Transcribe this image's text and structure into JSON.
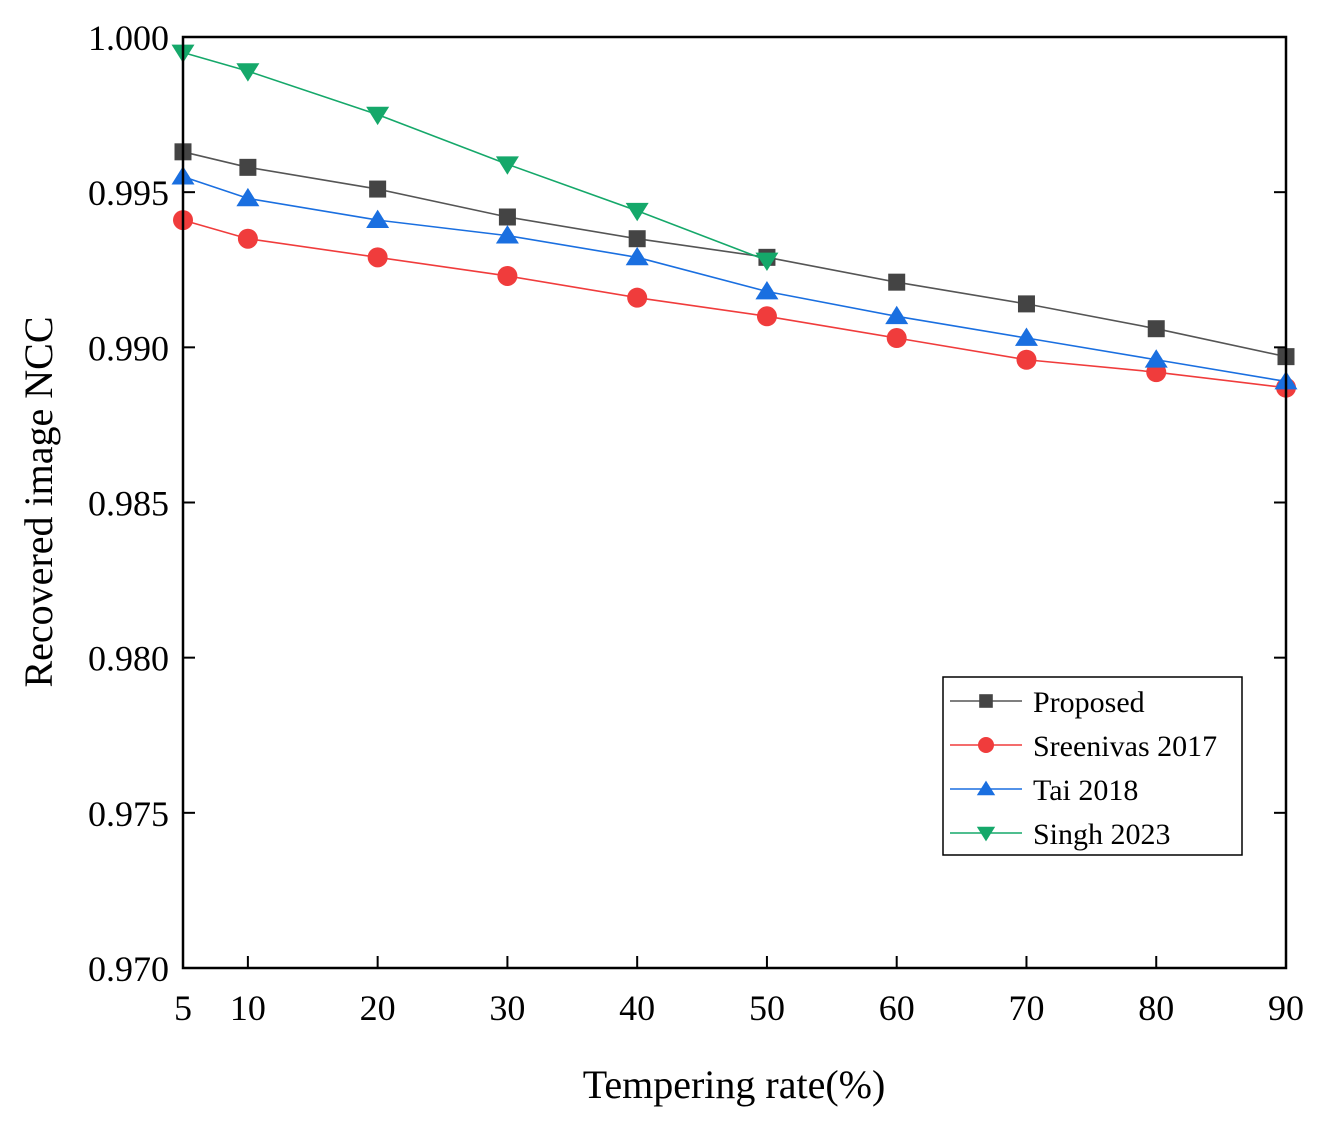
{
  "chart_data": {
    "type": "line",
    "xlabel": "Tempering rate(%)",
    "ylabel": "Recovered image NCC",
    "x": [
      5,
      10,
      20,
      30,
      40,
      50,
      60,
      70,
      80,
      90
    ],
    "xlim": [
      5,
      90
    ],
    "ylim": [
      0.97,
      1.0
    ],
    "xticks": [
      "5",
      "10",
      "20",
      "30",
      "40",
      "50",
      "60",
      "70",
      "80",
      "90"
    ],
    "xtick_values": [
      5,
      10,
      20,
      30,
      40,
      50,
      60,
      70,
      80,
      90
    ],
    "yticks": [
      "0.970",
      "0.975",
      "0.980",
      "0.985",
      "0.990",
      "0.995",
      "1.000"
    ],
    "ytick_values": [
      0.97,
      0.975,
      0.98,
      0.985,
      0.99,
      0.995,
      1.0
    ],
    "grid": false,
    "legend_position": "bottom-right",
    "series": [
      {
        "name": "Proposed",
        "marker": "square",
        "color": "#444444",
        "line_color": "#555555",
        "values": [
          0.9963,
          0.9958,
          0.9951,
          0.9942,
          0.9935,
          0.9929,
          0.9921,
          0.9914,
          0.9906,
          0.9897
        ]
      },
      {
        "name": "Sreenivas 2017",
        "marker": "circle",
        "color": "#F03C3C",
        "line_color": "#F03C3C",
        "values": [
          0.9941,
          0.9935,
          0.9929,
          0.9923,
          0.9916,
          0.991,
          0.9903,
          0.9896,
          0.9892,
          0.9887
        ]
      },
      {
        "name": "Tai 2018",
        "marker": "triangle-up",
        "color": "#1A6FE0",
        "line_color": "#1A6FE0",
        "values": [
          0.9955,
          0.9948,
          0.9941,
          0.9936,
          0.9929,
          0.9918,
          0.991,
          0.9903,
          0.9896,
          0.9889
        ]
      },
      {
        "name": "Singh 2023",
        "marker": "triangle-down",
        "color": "#15A86A",
        "line_color": "#15A86A",
        "values": [
          0.9995,
          0.9989,
          0.9975,
          0.9959,
          0.9944,
          0.9928,
          null,
          null,
          null,
          null
        ]
      }
    ]
  }
}
